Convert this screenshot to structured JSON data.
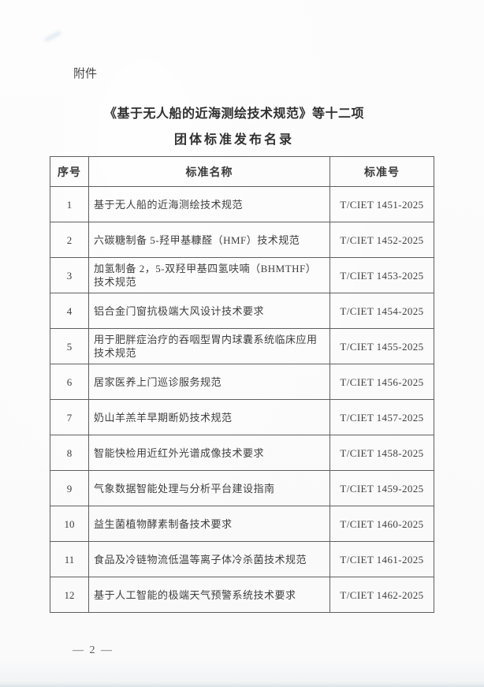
{
  "page": {
    "attachment_label": "附件",
    "title": "《基于无人船的近海测绘技术规范》等十二项",
    "subtitle": "团体标准发布名录",
    "page_number": "— 2 —"
  },
  "colors": {
    "page_background": "#fbfbfb",
    "text": "#3c3c3c",
    "table_border": "#5f5f5f"
  },
  "table": {
    "headers": [
      "序号",
      "标准名称",
      "标准号"
    ],
    "rows": [
      {
        "no": "1",
        "name": "基于无人船的近海测绘技术规范",
        "code": "T/CIET 1451-2025"
      },
      {
        "no": "2",
        "name": "六碳糖制备 5-羟甲基糠醛（HMF）技术规范",
        "code": "T/CIET 1452-2025"
      },
      {
        "no": "3",
        "name": "加氢制备 2，5-双羟甲基四氢呋喃（BHMTHF）技术规范",
        "code": "T/CIET 1453-2025"
      },
      {
        "no": "4",
        "name": "铝合金门窗抗极端大风设计技术要求",
        "code": "T/CIET 1454-2025"
      },
      {
        "no": "5",
        "name": "用于肥胖症治疗的吞咽型胃内球囊系统临床应用技术规范",
        "code": "T/CIET 1455-2025"
      },
      {
        "no": "6",
        "name": "居家医养上门巡诊服务规范",
        "code": "T/CIET 1456-2025"
      },
      {
        "no": "7",
        "name": "奶山羊羔羊早期断奶技术规范",
        "code": "T/CIET 1457-2025"
      },
      {
        "no": "8",
        "name": "智能快检用近红外光谱成像技术要求",
        "code": "T/CIET 1458-2025"
      },
      {
        "no": "9",
        "name": "气象数据智能处理与分析平台建设指南",
        "code": "T/CIET 1459-2025"
      },
      {
        "no": "10",
        "name": "益生菌植物酵素制备技术要求",
        "code": "T/CIET 1460-2025"
      },
      {
        "no": "11",
        "name": "食品及冷链物流低温等离子体冷杀菌技术规范",
        "code": "T/CIET 1461-2025"
      },
      {
        "no": "12",
        "name": "基于人工智能的极端天气预警系统技术要求",
        "code": "T/CIET 1462-2025"
      }
    ]
  }
}
